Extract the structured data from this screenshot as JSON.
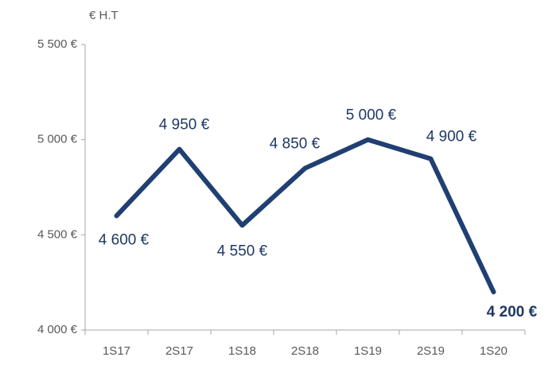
{
  "chart_data": {
    "type": "line",
    "y_label": "€ H.T",
    "categories": [
      "1S17",
      "2S17",
      "1S18",
      "2S18",
      "1S19",
      "2S19",
      "1S20"
    ],
    "series": [
      {
        "name": null,
        "color": "#203f72",
        "values": [
          4600,
          4950,
          4550,
          4850,
          5000,
          4900,
          4200
        ],
        "value_labels": [
          "4 600 €",
          "4 950 €",
          "4 550 €",
          "4 850 €",
          "5 000 €",
          "4 900 €",
          "4 200 €"
        ]
      }
    ],
    "ylim": [
      4000,
      5500
    ],
    "yticks": [
      {
        "value": 4000,
        "label": "4 000 €"
      },
      {
        "value": 4500,
        "label": "4 500 €"
      },
      {
        "value": 5000,
        "label": "5 000 €"
      },
      {
        "value": 5500,
        "label": "5 500 €"
      }
    ],
    "grid": false
  }
}
